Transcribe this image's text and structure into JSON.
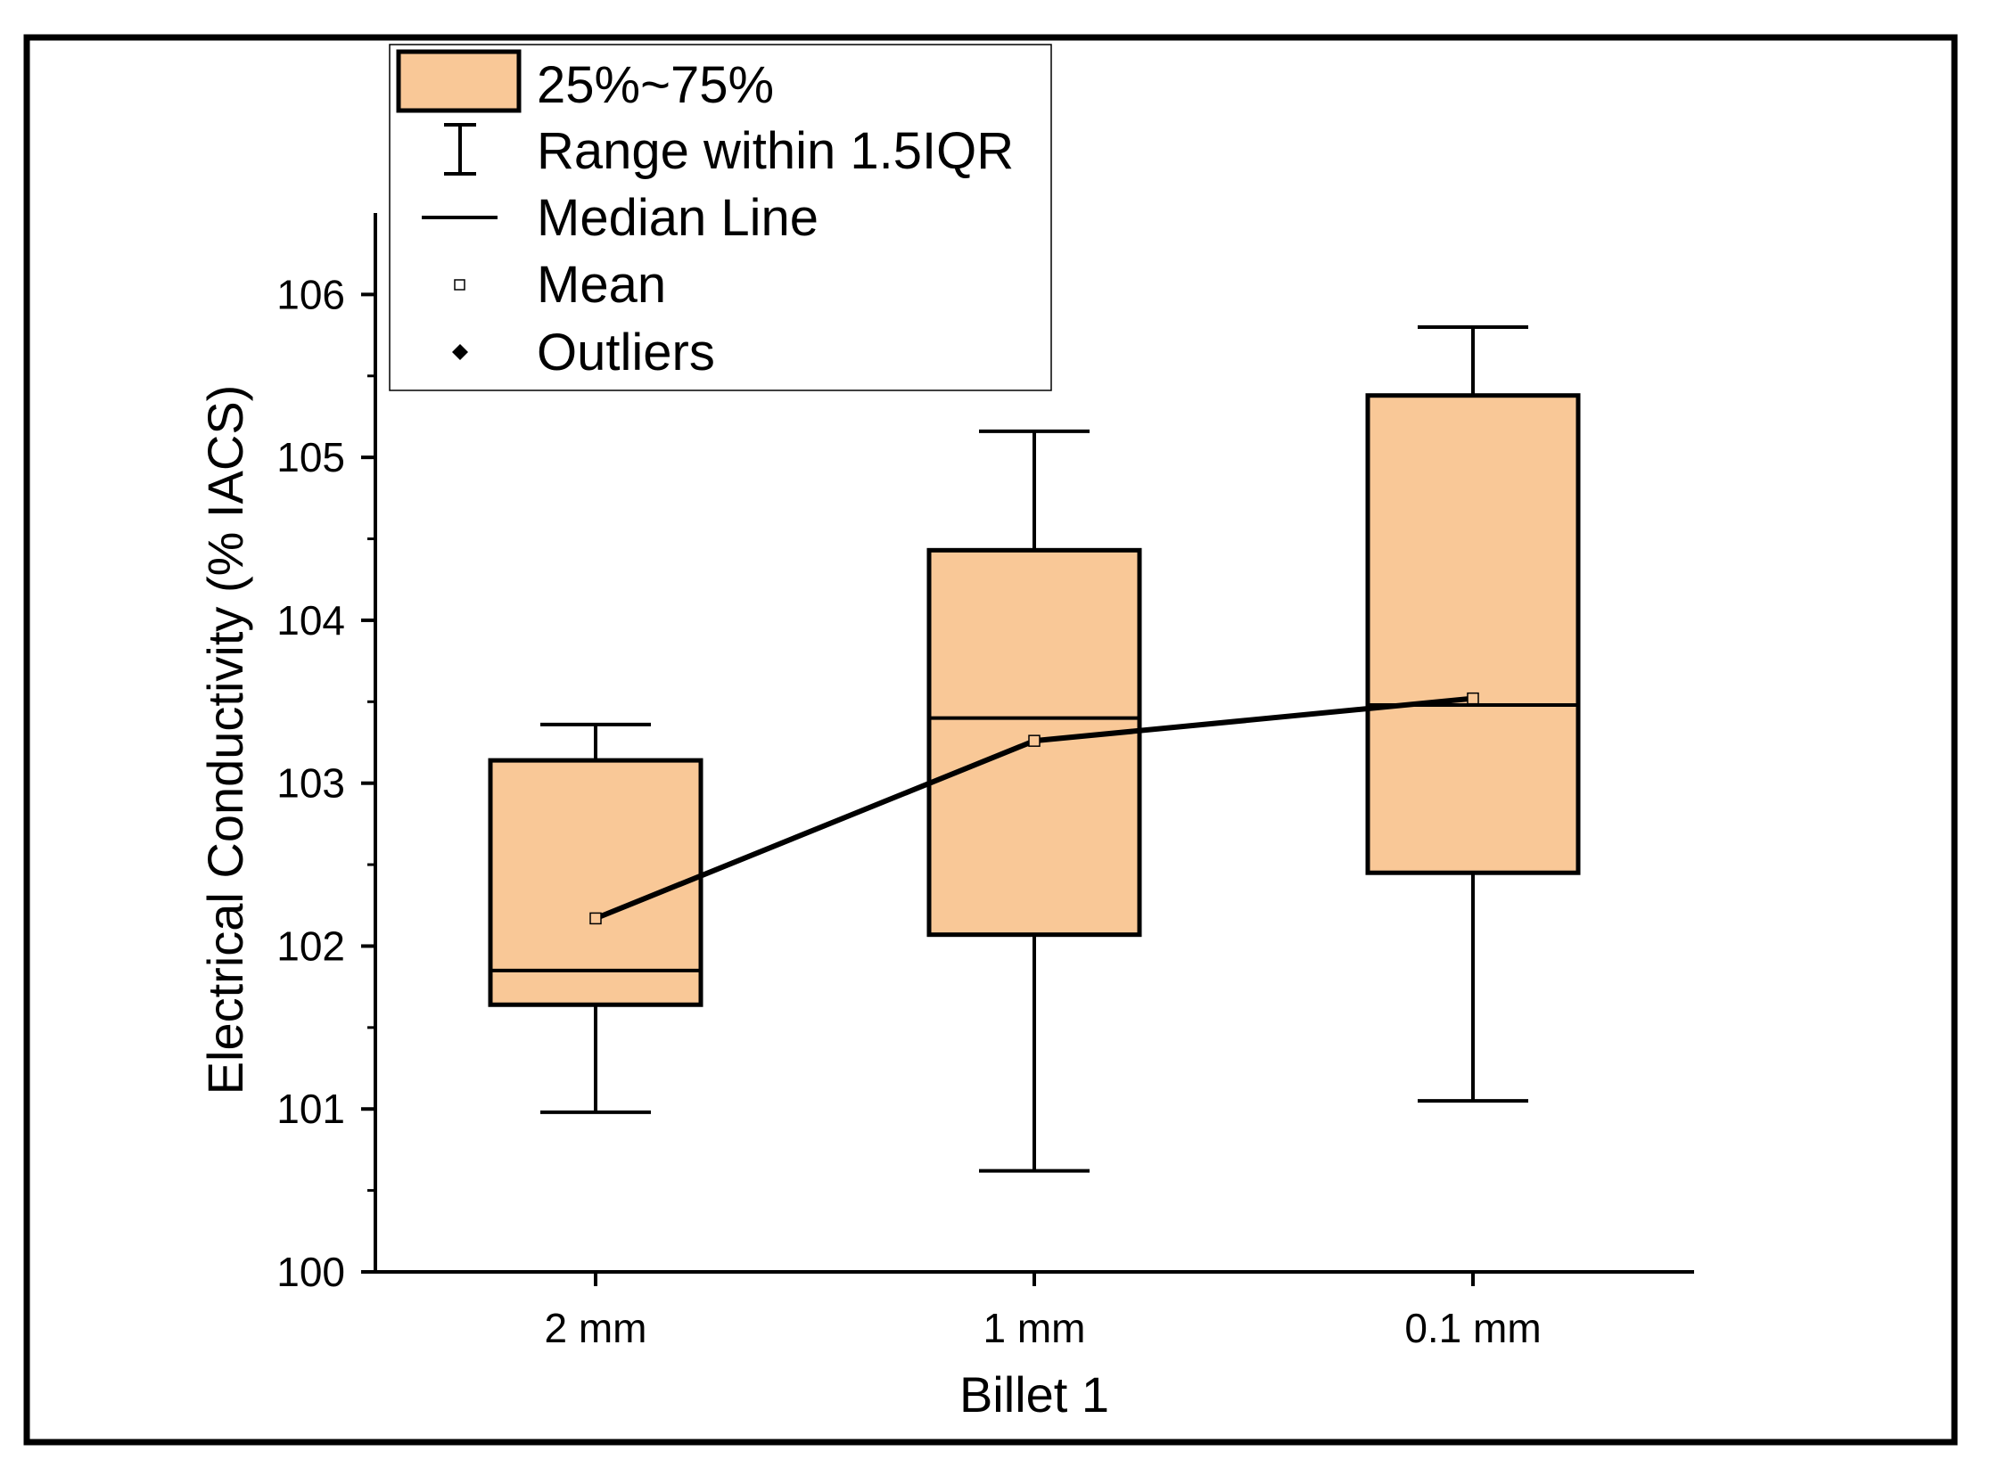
{
  "chart_data": {
    "type": "box",
    "categories": [
      "2 mm",
      "1 mm",
      "0.1 mm"
    ],
    "xlabel": "Billet 1",
    "ylabel": "Electrical Conductivity (% IACS)",
    "ylim": [
      100,
      106.5
    ],
    "yticks": [
      100,
      101,
      102,
      103,
      104,
      105,
      106
    ],
    "ytick_labels": [
      "100",
      "101",
      "102",
      "103",
      "104",
      "105",
      "106"
    ],
    "boxes": [
      {
        "category": "2 mm",
        "whisker_low": 100.98,
        "q1": 101.64,
        "median": 101.85,
        "q3": 103.14,
        "whisker_high": 103.36,
        "mean": 102.17
      },
      {
        "category": "1 mm",
        "whisker_low": 100.62,
        "q1": 102.07,
        "median": 103.4,
        "q3": 104.43,
        "whisker_high": 105.16,
        "mean": 103.26
      },
      {
        "category": "0.1 mm",
        "whisker_low": 101.05,
        "q1": 102.45,
        "median": 103.48,
        "q3": 105.38,
        "whisker_high": 105.8,
        "mean": 103.52
      }
    ],
    "mean_line": true,
    "legend": {
      "position": "top-left",
      "items": [
        {
          "label": "25%~75%",
          "symbol": "box"
        },
        {
          "label": "Range within 1.5IQR",
          "symbol": "whisker"
        },
        {
          "label": "Median Line",
          "symbol": "line"
        },
        {
          "label": "Mean",
          "symbol": "open-square"
        },
        {
          "label": "Outliers",
          "symbol": "diamond"
        }
      ]
    },
    "colors": {
      "box_fill": "#f9c897",
      "stroke": "#000000",
      "background": "#ffffff"
    }
  }
}
